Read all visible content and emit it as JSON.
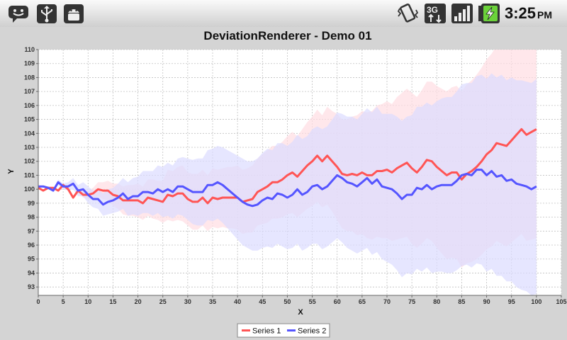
{
  "status_bar": {
    "time": "3:25",
    "ampm": "PM",
    "left_icons": [
      "chat-icon",
      "usb-icon",
      "android-debug-icon"
    ],
    "right_icons": [
      "vibrate-icon",
      "3g-data-icon",
      "signal-icon",
      "battery-charging-icon"
    ]
  },
  "colors": {
    "series1": "#ff5555",
    "series2": "#5555ff",
    "band1": "#ffdde3",
    "band2": "#dcdcff",
    "plot_bg": "#ffffff",
    "grid": "#c0c0c0"
  },
  "chart_data": {
    "type": "line",
    "title": "DeviationRenderer - Demo 01",
    "xlabel": "X",
    "ylabel": "Y",
    "xlim": [
      0,
      105
    ],
    "ylim": [
      92.4,
      110
    ],
    "x_ticks": [
      0,
      5,
      10,
      15,
      20,
      25,
      30,
      35,
      40,
      45,
      50,
      55,
      60,
      65,
      70,
      75,
      80,
      85,
      90,
      95,
      100,
      105
    ],
    "y_ticks": [
      93,
      94,
      95,
      96,
      97,
      98,
      99,
      100,
      101,
      102,
      103,
      104,
      105,
      106,
      107,
      108,
      109,
      110
    ],
    "grid": true,
    "legend_position": "bottom",
    "series": [
      {
        "name": "Series 1",
        "color": "#ff5555",
        "band_color": "#ffdde3",
        "x": [
          0,
          1,
          2,
          3,
          4,
          5,
          6,
          7,
          8,
          9,
          10,
          11,
          12,
          13,
          14,
          15,
          16,
          17,
          18,
          19,
          20,
          21,
          22,
          23,
          24,
          25,
          26,
          27,
          28,
          29,
          30,
          31,
          32,
          33,
          34,
          35,
          36,
          37,
          38,
          39,
          40,
          41,
          42,
          43,
          44,
          45,
          46,
          47,
          48,
          49,
          50,
          51,
          52,
          53,
          54,
          55,
          56,
          57,
          58,
          59,
          60,
          61,
          62,
          63,
          64,
          65,
          66,
          67,
          68,
          69,
          70,
          71,
          72,
          73,
          74,
          75,
          76,
          77,
          78,
          79,
          80,
          81,
          82,
          83,
          84,
          85,
          86,
          87,
          88,
          89,
          90,
          91,
          92,
          93,
          94,
          95,
          96,
          97,
          98,
          99,
          100
        ],
        "y": [
          100.1,
          99.9,
          100.1,
          100.1,
          99.9,
          100.3,
          100,
          99.4,
          99.9,
          99.6,
          99.6,
          99.7,
          100,
          99.9,
          99.9,
          99.6,
          99.5,
          99.2,
          99.2,
          99.2,
          99.2,
          99,
          99.4,
          99.3,
          99.2,
          99.1,
          99.6,
          99.5,
          99.7,
          99.7,
          99.3,
          99.1,
          99.1,
          99.4,
          99,
          99.4,
          99.3,
          99.4,
          99.4,
          99.4,
          99.4,
          99.1,
          99.2,
          99.3,
          99.8,
          100,
          100.2,
          100.5,
          100.5,
          100.7,
          101,
          101.2,
          100.9,
          101.3,
          101.7,
          102,
          102.4,
          102,
          102.4,
          102,
          101.6,
          101.1,
          101,
          101.1,
          101,
          101.2,
          101,
          101,
          101.3,
          101.3,
          101.4,
          101.2,
          101.5,
          101.7,
          101.9,
          101.5,
          101.2,
          101.6,
          102.1,
          102,
          101.6,
          101.3,
          101,
          101.2,
          101.2,
          100.7,
          101.1,
          101.3,
          101.6,
          102,
          102.5,
          102.8,
          103.3,
          103.2,
          103.1,
          103.5,
          103.9,
          104.3,
          103.9,
          104.1,
          104.3
        ],
        "lower": [
          100.1,
          99.9,
          100.1,
          100.1,
          99.9,
          100.2,
          99.9,
          99.3,
          99.7,
          99.4,
          99.3,
          99.3,
          99.5,
          99.3,
          99.2,
          98.8,
          98.6,
          98.2,
          98.1,
          98.1,
          98,
          97.8,
          98.1,
          97.9,
          97.8,
          97.6,
          97.8,
          97.7,
          97.8,
          97.7,
          97.4,
          97.1,
          97.1,
          97.4,
          97,
          97.3,
          97.2,
          97.3,
          97.2,
          97.2,
          97.1,
          96.8,
          96.9,
          96.9,
          97.4,
          97.5,
          97.6,
          97.9,
          97.9,
          98,
          98.2,
          98.3,
          98,
          98.3,
          98.6,
          98.8,
          99.1,
          98.7,
          98.9,
          98.4,
          97.8,
          97.2,
          97,
          97,
          96.7,
          96.8,
          96.5,
          96.4,
          96.6,
          96.5,
          96.5,
          96.3,
          96.4,
          96.5,
          96.6,
          96.1,
          95.8,
          96.1,
          96.5,
          96.3,
          95.8,
          95.4,
          95,
          95.1,
          95,
          94.4,
          94.7,
          94.8,
          95,
          95.3,
          95.7,
          95.9,
          96.3,
          96.1,
          95.9,
          96.2,
          96.5,
          96.8,
          96.3,
          96.4,
          96.5
        ],
        "upper": [
          100.1,
          99.9,
          100.1,
          100.1,
          99.9,
          100.4,
          100.1,
          99.5,
          100.1,
          99.8,
          99.9,
          100.1,
          100.5,
          100.5,
          100.6,
          100.4,
          100.4,
          100.2,
          100.3,
          100.3,
          100.4,
          100.2,
          100.7,
          100.7,
          100.6,
          100.6,
          101.4,
          101.3,
          101.6,
          101.7,
          101.2,
          101.1,
          101.1,
          101.4,
          101,
          101.5,
          101.4,
          101.5,
          101.6,
          101.6,
          101.7,
          101.4,
          101.5,
          101.7,
          102.2,
          102.5,
          102.8,
          103.1,
          103.1,
          103.4,
          103.8,
          104.1,
          103.8,
          104.3,
          104.8,
          105.2,
          105.7,
          105.3,
          105.9,
          105.6,
          105.4,
          105,
          105,
          105.2,
          105.3,
          105.6,
          105.5,
          105.6,
          106,
          106.1,
          106.3,
          106.1,
          106.6,
          106.9,
          107.2,
          106.9,
          106.6,
          107.1,
          107.7,
          107.7,
          107.4,
          107.2,
          107,
          107.3,
          107.4,
          107,
          107.5,
          107.8,
          108.2,
          108.7,
          109.3,
          109.7,
          110.3,
          110.3,
          110.3,
          110.8,
          111.3,
          111.8,
          111.5,
          111.8,
          112.1
        ]
      },
      {
        "name": "Series 2",
        "color": "#5555ff",
        "band_color": "#dcdcff",
        "x": [
          0,
          1,
          2,
          3,
          4,
          5,
          6,
          7,
          8,
          9,
          10,
          11,
          12,
          13,
          14,
          15,
          16,
          17,
          18,
          19,
          20,
          21,
          22,
          23,
          24,
          25,
          26,
          27,
          28,
          29,
          30,
          31,
          32,
          33,
          34,
          35,
          36,
          37,
          38,
          39,
          40,
          41,
          42,
          43,
          44,
          45,
          46,
          47,
          48,
          49,
          50,
          51,
          52,
          53,
          54,
          55,
          56,
          57,
          58,
          59,
          60,
          61,
          62,
          63,
          64,
          65,
          66,
          67,
          68,
          69,
          70,
          71,
          72,
          73,
          74,
          75,
          76,
          77,
          78,
          79,
          80,
          81,
          82,
          83,
          84,
          85,
          86,
          87,
          88,
          89,
          90,
          91,
          92,
          93,
          94,
          95,
          96,
          97,
          98,
          99,
          100
        ],
        "y": [
          100.2,
          100.2,
          100.1,
          99.9,
          100.5,
          100.2,
          100.2,
          100.4,
          99.9,
          100,
          99.6,
          99.3,
          99.3,
          98.9,
          99.1,
          99.2,
          99.4,
          99.7,
          99.3,
          99.5,
          99.5,
          99.8,
          99.8,
          99.7,
          100,
          99.8,
          100,
          99.8,
          100.2,
          100.2,
          100,
          99.8,
          99.8,
          99.8,
          100.3,
          100.3,
          100.5,
          100.3,
          100,
          99.7,
          99.4,
          99.1,
          98.9,
          98.8,
          98.9,
          99.2,
          99.4,
          99.3,
          99.7,
          99.6,
          99.4,
          99.6,
          100,
          99.6,
          99.8,
          100.2,
          100.3,
          100,
          100.2,
          100.6,
          101,
          100.8,
          100.5,
          100.4,
          100.2,
          100.5,
          100.8,
          100.4,
          100.7,
          100.2,
          100.1,
          100,
          99.7,
          99.3,
          99.6,
          99.6,
          100.1,
          100,
          100.3,
          100,
          100.2,
          100.3,
          100.3,
          100.3,
          100.6,
          101,
          101.1,
          101,
          101.4,
          101.4,
          101,
          101.3,
          100.9,
          101,
          100.6,
          100.7,
          100.4,
          100.3,
          100.2,
          100,
          100.2
        ],
        "lower": [
          100.2,
          100.2,
          100,
          99.8,
          100.3,
          100,
          99.9,
          100,
          99.5,
          99.5,
          99,
          98.7,
          98.6,
          98.1,
          98.2,
          98.3,
          98.4,
          98.6,
          98.1,
          98.2,
          98.1,
          98.3,
          98.3,
          98.1,
          98.3,
          98,
          98.1,
          97.9,
          98.2,
          98.1,
          97.8,
          97.5,
          97.4,
          97.4,
          97.8,
          97.7,
          97.9,
          97.6,
          97.2,
          96.8,
          96.4,
          96,
          95.8,
          95.6,
          95.6,
          95.8,
          95.9,
          95.8,
          96.1,
          95.9,
          95.7,
          95.8,
          96.1,
          95.6,
          95.8,
          96.1,
          96.1,
          95.7,
          95.9,
          96.2,
          96.5,
          96.2,
          95.8,
          95.6,
          95.4,
          95.6,
          95.8,
          95.3,
          95.5,
          95,
          94.8,
          94.6,
          94.2,
          93.7,
          94,
          93.9,
          94.3,
          94.1,
          94.4,
          94,
          94.1,
          94.1,
          94,
          94,
          94.2,
          94.5,
          94.6,
          94.4,
          94.7,
          94.6,
          94.1,
          94.3,
          93.8,
          93.8,
          93.4,
          93.4,
          93,
          92.8,
          92.7,
          92.4,
          92.5
        ],
        "upper": [
          100.2,
          100.2,
          100.2,
          100,
          100.7,
          100.4,
          100.5,
          100.8,
          100.3,
          100.5,
          100.2,
          99.9,
          100,
          99.7,
          100,
          100.1,
          100.4,
          100.8,
          100.5,
          100.8,
          100.9,
          101.3,
          101.3,
          101.3,
          101.7,
          101.6,
          101.9,
          101.7,
          102.2,
          102.3,
          102.2,
          102.1,
          102.2,
          102.2,
          102.8,
          102.9,
          103.1,
          103,
          102.8,
          102.6,
          102.4,
          102.2,
          102,
          102,
          102.2,
          102.6,
          102.9,
          102.8,
          103.3,
          103.3,
          103.1,
          103.4,
          103.9,
          103.6,
          103.8,
          104.3,
          104.5,
          104.3,
          104.5,
          105,
          105.5,
          105.4,
          105.2,
          105.2,
          105,
          105.4,
          105.8,
          105.5,
          105.9,
          105.4,
          105.4,
          105.4,
          105.2,
          104.9,
          105.2,
          105.3,
          105.9,
          105.9,
          106.2,
          106,
          106.3,
          106.5,
          106.6,
          106.6,
          107,
          107.5,
          107.6,
          107.6,
          108.1,
          108.2,
          107.9,
          108.3,
          108,
          108.2,
          107.8,
          108,
          107.8,
          107.8,
          107.7,
          107.6,
          107.9
        ]
      }
    ]
  }
}
